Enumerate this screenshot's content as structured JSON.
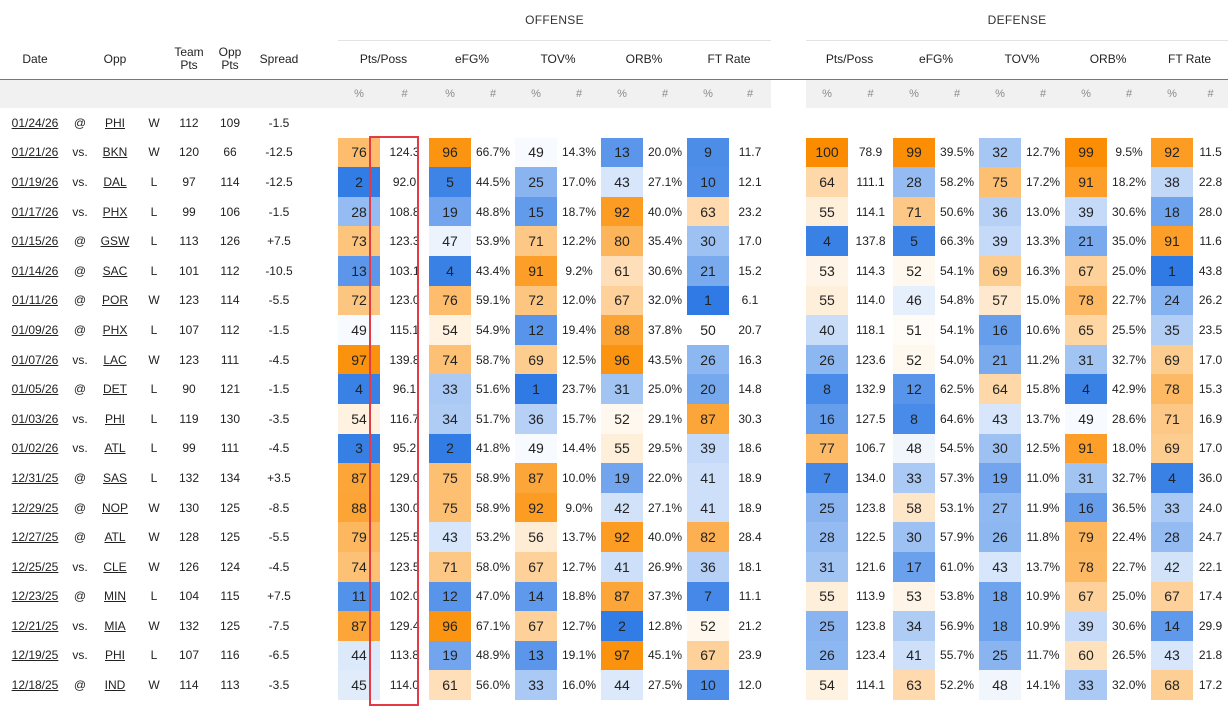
{
  "group_headers": {
    "offense": "OFFENSE",
    "defense": "DEFENSE"
  },
  "headers": {
    "date": "Date",
    "opp": "Opp",
    "team_pts": "Team\nPts",
    "opp_pts": "Opp\nPts",
    "spread": "Spread",
    "metrics": [
      "Pts/Poss",
      "eFG%",
      "TOV%",
      "ORB%",
      "FT Rate"
    ]
  },
  "sub_headers": {
    "pct": "%",
    "num": "#"
  },
  "colors": {
    "orange_dark": "#fb8c00",
    "blue_dark": "#2b78e4",
    "highlight_border": "#e43a46"
  },
  "rows": [
    {
      "date": "01/24/26",
      "loc": "@",
      "opp": "PHI",
      "result": "W",
      "team_pts": "112",
      "opp_pts": "109",
      "spread": "-1.5",
      "off": [],
      "def": []
    },
    {
      "date": "01/21/26",
      "loc": "vs.",
      "opp": "BKN",
      "result": "W",
      "team_pts": "120",
      "opp_pts": "66",
      "spread": "-12.5",
      "off": [
        [
          "76",
          "124.3"
        ],
        [
          "96",
          "66.7%"
        ],
        [
          "49",
          "14.3%"
        ],
        [
          "13",
          "20.0%"
        ],
        [
          "9",
          "11.7"
        ]
      ],
      "def": [
        [
          "100",
          "78.9"
        ],
        [
          "99",
          "39.5%"
        ],
        [
          "32",
          "12.7%"
        ],
        [
          "99",
          "9.5%"
        ],
        [
          "92",
          "11.5"
        ]
      ]
    },
    {
      "date": "01/19/26",
      "loc": "vs.",
      "opp": "DAL",
      "result": "L",
      "team_pts": "97",
      "opp_pts": "114",
      "spread": "-12.5",
      "off": [
        [
          "2",
          "92.0"
        ],
        [
          "5",
          "44.5%"
        ],
        [
          "25",
          "17.0%"
        ],
        [
          "43",
          "27.1%"
        ],
        [
          "10",
          "12.1"
        ]
      ],
      "def": [
        [
          "64",
          "111.1"
        ],
        [
          "28",
          "58.2%"
        ],
        [
          "75",
          "17.2%"
        ],
        [
          "91",
          "18.2%"
        ],
        [
          "38",
          "22.8"
        ]
      ]
    },
    {
      "date": "01/17/26",
      "loc": "vs.",
      "opp": "PHX",
      "result": "L",
      "team_pts": "99",
      "opp_pts": "106",
      "spread": "-1.5",
      "off": [
        [
          "28",
          "108.8"
        ],
        [
          "19",
          "48.8%"
        ],
        [
          "15",
          "18.7%"
        ],
        [
          "92",
          "40.0%"
        ],
        [
          "63",
          "23.2"
        ]
      ],
      "def": [
        [
          "55",
          "114.1"
        ],
        [
          "71",
          "50.6%"
        ],
        [
          "36",
          "13.0%"
        ],
        [
          "39",
          "30.6%"
        ],
        [
          "18",
          "28.0"
        ]
      ]
    },
    {
      "date": "01/15/26",
      "loc": "@",
      "opp": "GSW",
      "result": "L",
      "team_pts": "113",
      "opp_pts": "126",
      "spread": "+7.5",
      "off": [
        [
          "73",
          "123.3"
        ],
        [
          "47",
          "53.9%"
        ],
        [
          "71",
          "12.2%"
        ],
        [
          "80",
          "35.4%"
        ],
        [
          "30",
          "17.0"
        ]
      ],
      "def": [
        [
          "4",
          "137.8"
        ],
        [
          "5",
          "66.3%"
        ],
        [
          "39",
          "13.3%"
        ],
        [
          "21",
          "35.0%"
        ],
        [
          "91",
          "11.6"
        ]
      ]
    },
    {
      "date": "01/14/26",
      "loc": "@",
      "opp": "SAC",
      "result": "L",
      "team_pts": "101",
      "opp_pts": "112",
      "spread": "-10.5",
      "off": [
        [
          "13",
          "103.1"
        ],
        [
          "4",
          "43.4%"
        ],
        [
          "91",
          "9.2%"
        ],
        [
          "61",
          "30.6%"
        ],
        [
          "21",
          "15.2"
        ]
      ],
      "def": [
        [
          "53",
          "114.3"
        ],
        [
          "52",
          "54.1%"
        ],
        [
          "69",
          "16.3%"
        ],
        [
          "67",
          "25.0%"
        ],
        [
          "1",
          "43.8"
        ]
      ]
    },
    {
      "date": "01/11/26",
      "loc": "@",
      "opp": "POR",
      "result": "W",
      "team_pts": "123",
      "opp_pts": "114",
      "spread": "-5.5",
      "off": [
        [
          "72",
          "123.0"
        ],
        [
          "76",
          "59.1%"
        ],
        [
          "72",
          "12.0%"
        ],
        [
          "67",
          "32.0%"
        ],
        [
          "1",
          "6.1"
        ]
      ],
      "def": [
        [
          "55",
          "114.0"
        ],
        [
          "46",
          "54.8%"
        ],
        [
          "57",
          "15.0%"
        ],
        [
          "78",
          "22.7%"
        ],
        [
          "24",
          "26.2"
        ]
      ]
    },
    {
      "date": "01/09/26",
      "loc": "@",
      "opp": "PHX",
      "result": "L",
      "team_pts": "107",
      "opp_pts": "112",
      "spread": "-1.5",
      "off": [
        [
          "49",
          "115.1"
        ],
        [
          "54",
          "54.9%"
        ],
        [
          "12",
          "19.4%"
        ],
        [
          "88",
          "37.8%"
        ],
        [
          "50",
          "20.7"
        ]
      ],
      "def": [
        [
          "40",
          "118.1"
        ],
        [
          "51",
          "54.1%"
        ],
        [
          "16",
          "10.6%"
        ],
        [
          "65",
          "25.5%"
        ],
        [
          "35",
          "23.5"
        ]
      ]
    },
    {
      "date": "01/07/26",
      "loc": "vs.",
      "opp": "LAC",
      "result": "W",
      "team_pts": "123",
      "opp_pts": "111",
      "spread": "-4.5",
      "off": [
        [
          "97",
          "139.8"
        ],
        [
          "74",
          "58.7%"
        ],
        [
          "69",
          "12.5%"
        ],
        [
          "96",
          "43.5%"
        ],
        [
          "26",
          "16.3"
        ]
      ],
      "def": [
        [
          "26",
          "123.6"
        ],
        [
          "52",
          "54.0%"
        ],
        [
          "21",
          "11.2%"
        ],
        [
          "31",
          "32.7%"
        ],
        [
          "69",
          "17.0"
        ]
      ]
    },
    {
      "date": "01/05/26",
      "loc": "@",
      "opp": "DET",
      "result": "L",
      "team_pts": "90",
      "opp_pts": "121",
      "spread": "-1.5",
      "off": [
        [
          "4",
          "96.1"
        ],
        [
          "33",
          "51.6%"
        ],
        [
          "1",
          "23.7%"
        ],
        [
          "31",
          "25.0%"
        ],
        [
          "20",
          "14.8"
        ]
      ],
      "def": [
        [
          "8",
          "132.9"
        ],
        [
          "12",
          "62.5%"
        ],
        [
          "64",
          "15.8%"
        ],
        [
          "4",
          "42.9%"
        ],
        [
          "78",
          "15.3"
        ]
      ]
    },
    {
      "date": "01/03/26",
      "loc": "vs.",
      "opp": "PHI",
      "result": "L",
      "team_pts": "119",
      "opp_pts": "130",
      "spread": "-3.5",
      "off": [
        [
          "54",
          "116.7"
        ],
        [
          "34",
          "51.7%"
        ],
        [
          "36",
          "15.7%"
        ],
        [
          "52",
          "29.1%"
        ],
        [
          "87",
          "30.3"
        ]
      ],
      "def": [
        [
          "16",
          "127.5"
        ],
        [
          "8",
          "64.6%"
        ],
        [
          "43",
          "13.7%"
        ],
        [
          "49",
          "28.6%"
        ],
        [
          "71",
          "16.9"
        ]
      ]
    },
    {
      "date": "01/02/26",
      "loc": "vs.",
      "opp": "ATL",
      "result": "L",
      "team_pts": "99",
      "opp_pts": "111",
      "spread": "-4.5",
      "off": [
        [
          "3",
          "95.2"
        ],
        [
          "2",
          "41.8%"
        ],
        [
          "49",
          "14.4%"
        ],
        [
          "55",
          "29.5%"
        ],
        [
          "39",
          "18.6"
        ]
      ],
      "def": [
        [
          "77",
          "106.7"
        ],
        [
          "48",
          "54.5%"
        ],
        [
          "30",
          "12.5%"
        ],
        [
          "91",
          "18.0%"
        ],
        [
          "69",
          "17.0"
        ]
      ]
    },
    {
      "date": "12/31/25",
      "loc": "@",
      "opp": "SAS",
      "result": "L",
      "team_pts": "132",
      "opp_pts": "134",
      "spread": "+3.5",
      "off": [
        [
          "87",
          "129.0"
        ],
        [
          "75",
          "58.9%"
        ],
        [
          "87",
          "10.0%"
        ],
        [
          "19",
          "22.0%"
        ],
        [
          "41",
          "18.9"
        ]
      ],
      "def": [
        [
          "7",
          "134.0"
        ],
        [
          "33",
          "57.3%"
        ],
        [
          "19",
          "11.0%"
        ],
        [
          "31",
          "32.7%"
        ],
        [
          "4",
          "36.0"
        ]
      ]
    },
    {
      "date": "12/29/25",
      "loc": "@",
      "opp": "NOP",
      "result": "W",
      "team_pts": "130",
      "opp_pts": "125",
      "spread": "-8.5",
      "off": [
        [
          "88",
          "130.0"
        ],
        [
          "75",
          "58.9%"
        ],
        [
          "92",
          "9.0%"
        ],
        [
          "42",
          "27.1%"
        ],
        [
          "41",
          "18.9"
        ]
      ],
      "def": [
        [
          "25",
          "123.8"
        ],
        [
          "58",
          "53.1%"
        ],
        [
          "27",
          "11.9%"
        ],
        [
          "16",
          "36.5%"
        ],
        [
          "33",
          "24.0"
        ]
      ]
    },
    {
      "date": "12/27/25",
      "loc": "@",
      "opp": "ATL",
      "result": "W",
      "team_pts": "128",
      "opp_pts": "125",
      "spread": "-5.5",
      "off": [
        [
          "79",
          "125.5"
        ],
        [
          "43",
          "53.2%"
        ],
        [
          "56",
          "13.7%"
        ],
        [
          "92",
          "40.0%"
        ],
        [
          "82",
          "28.4"
        ]
      ],
      "def": [
        [
          "28",
          "122.5"
        ],
        [
          "30",
          "57.9%"
        ],
        [
          "26",
          "11.8%"
        ],
        [
          "79",
          "22.4%"
        ],
        [
          "28",
          "24.7"
        ]
      ]
    },
    {
      "date": "12/25/25",
      "loc": "vs.",
      "opp": "CLE",
      "result": "W",
      "team_pts": "126",
      "opp_pts": "124",
      "spread": "-4.5",
      "off": [
        [
          "74",
          "123.5"
        ],
        [
          "71",
          "58.0%"
        ],
        [
          "67",
          "12.7%"
        ],
        [
          "41",
          "26.9%"
        ],
        [
          "36",
          "18.1"
        ]
      ],
      "def": [
        [
          "31",
          "121.6"
        ],
        [
          "17",
          "61.0%"
        ],
        [
          "43",
          "13.7%"
        ],
        [
          "78",
          "22.7%"
        ],
        [
          "42",
          "22.1"
        ]
      ]
    },
    {
      "date": "12/23/25",
      "loc": "@",
      "opp": "MIN",
      "result": "L",
      "team_pts": "104",
      "opp_pts": "115",
      "spread": "+7.5",
      "off": [
        [
          "11",
          "102.0"
        ],
        [
          "12",
          "47.0%"
        ],
        [
          "14",
          "18.8%"
        ],
        [
          "87",
          "37.3%"
        ],
        [
          "7",
          "11.1"
        ]
      ],
      "def": [
        [
          "55",
          "113.9"
        ],
        [
          "53",
          "53.8%"
        ],
        [
          "18",
          "10.9%"
        ],
        [
          "67",
          "25.0%"
        ],
        [
          "67",
          "17.4"
        ]
      ]
    },
    {
      "date": "12/21/25",
      "loc": "vs.",
      "opp": "MIA",
      "result": "W",
      "team_pts": "132",
      "opp_pts": "125",
      "spread": "-7.5",
      "off": [
        [
          "87",
          "129.4"
        ],
        [
          "96",
          "67.1%"
        ],
        [
          "67",
          "12.7%"
        ],
        [
          "2",
          "12.8%"
        ],
        [
          "52",
          "21.2"
        ]
      ],
      "def": [
        [
          "25",
          "123.8"
        ],
        [
          "34",
          "56.9%"
        ],
        [
          "18",
          "10.9%"
        ],
        [
          "39",
          "30.6%"
        ],
        [
          "14",
          "29.9"
        ]
      ]
    },
    {
      "date": "12/19/25",
      "loc": "vs.",
      "opp": "PHI",
      "result": "L",
      "team_pts": "107",
      "opp_pts": "116",
      "spread": "-6.5",
      "off": [
        [
          "44",
          "113.8"
        ],
        [
          "19",
          "48.9%"
        ],
        [
          "13",
          "19.1%"
        ],
        [
          "97",
          "45.1%"
        ],
        [
          "67",
          "23.9"
        ]
      ],
      "def": [
        [
          "26",
          "123.4"
        ],
        [
          "41",
          "55.7%"
        ],
        [
          "25",
          "11.7%"
        ],
        [
          "60",
          "26.5%"
        ],
        [
          "43",
          "21.8"
        ]
      ]
    },
    {
      "date": "12/18/25",
      "loc": "@",
      "opp": "IND",
      "result": "W",
      "team_pts": "114",
      "opp_pts": "113",
      "spread": "-3.5",
      "off": [
        [
          "45",
          "114.0"
        ],
        [
          "61",
          "56.0%"
        ],
        [
          "33",
          "16.0%"
        ],
        [
          "44",
          "27.5%"
        ],
        [
          "10",
          "12.0"
        ]
      ],
      "def": [
        [
          "54",
          "114.1"
        ],
        [
          "63",
          "52.2%"
        ],
        [
          "48",
          "14.1%"
        ],
        [
          "33",
          "32.0%"
        ],
        [
          "68",
          "17.2"
        ]
      ]
    }
  ]
}
